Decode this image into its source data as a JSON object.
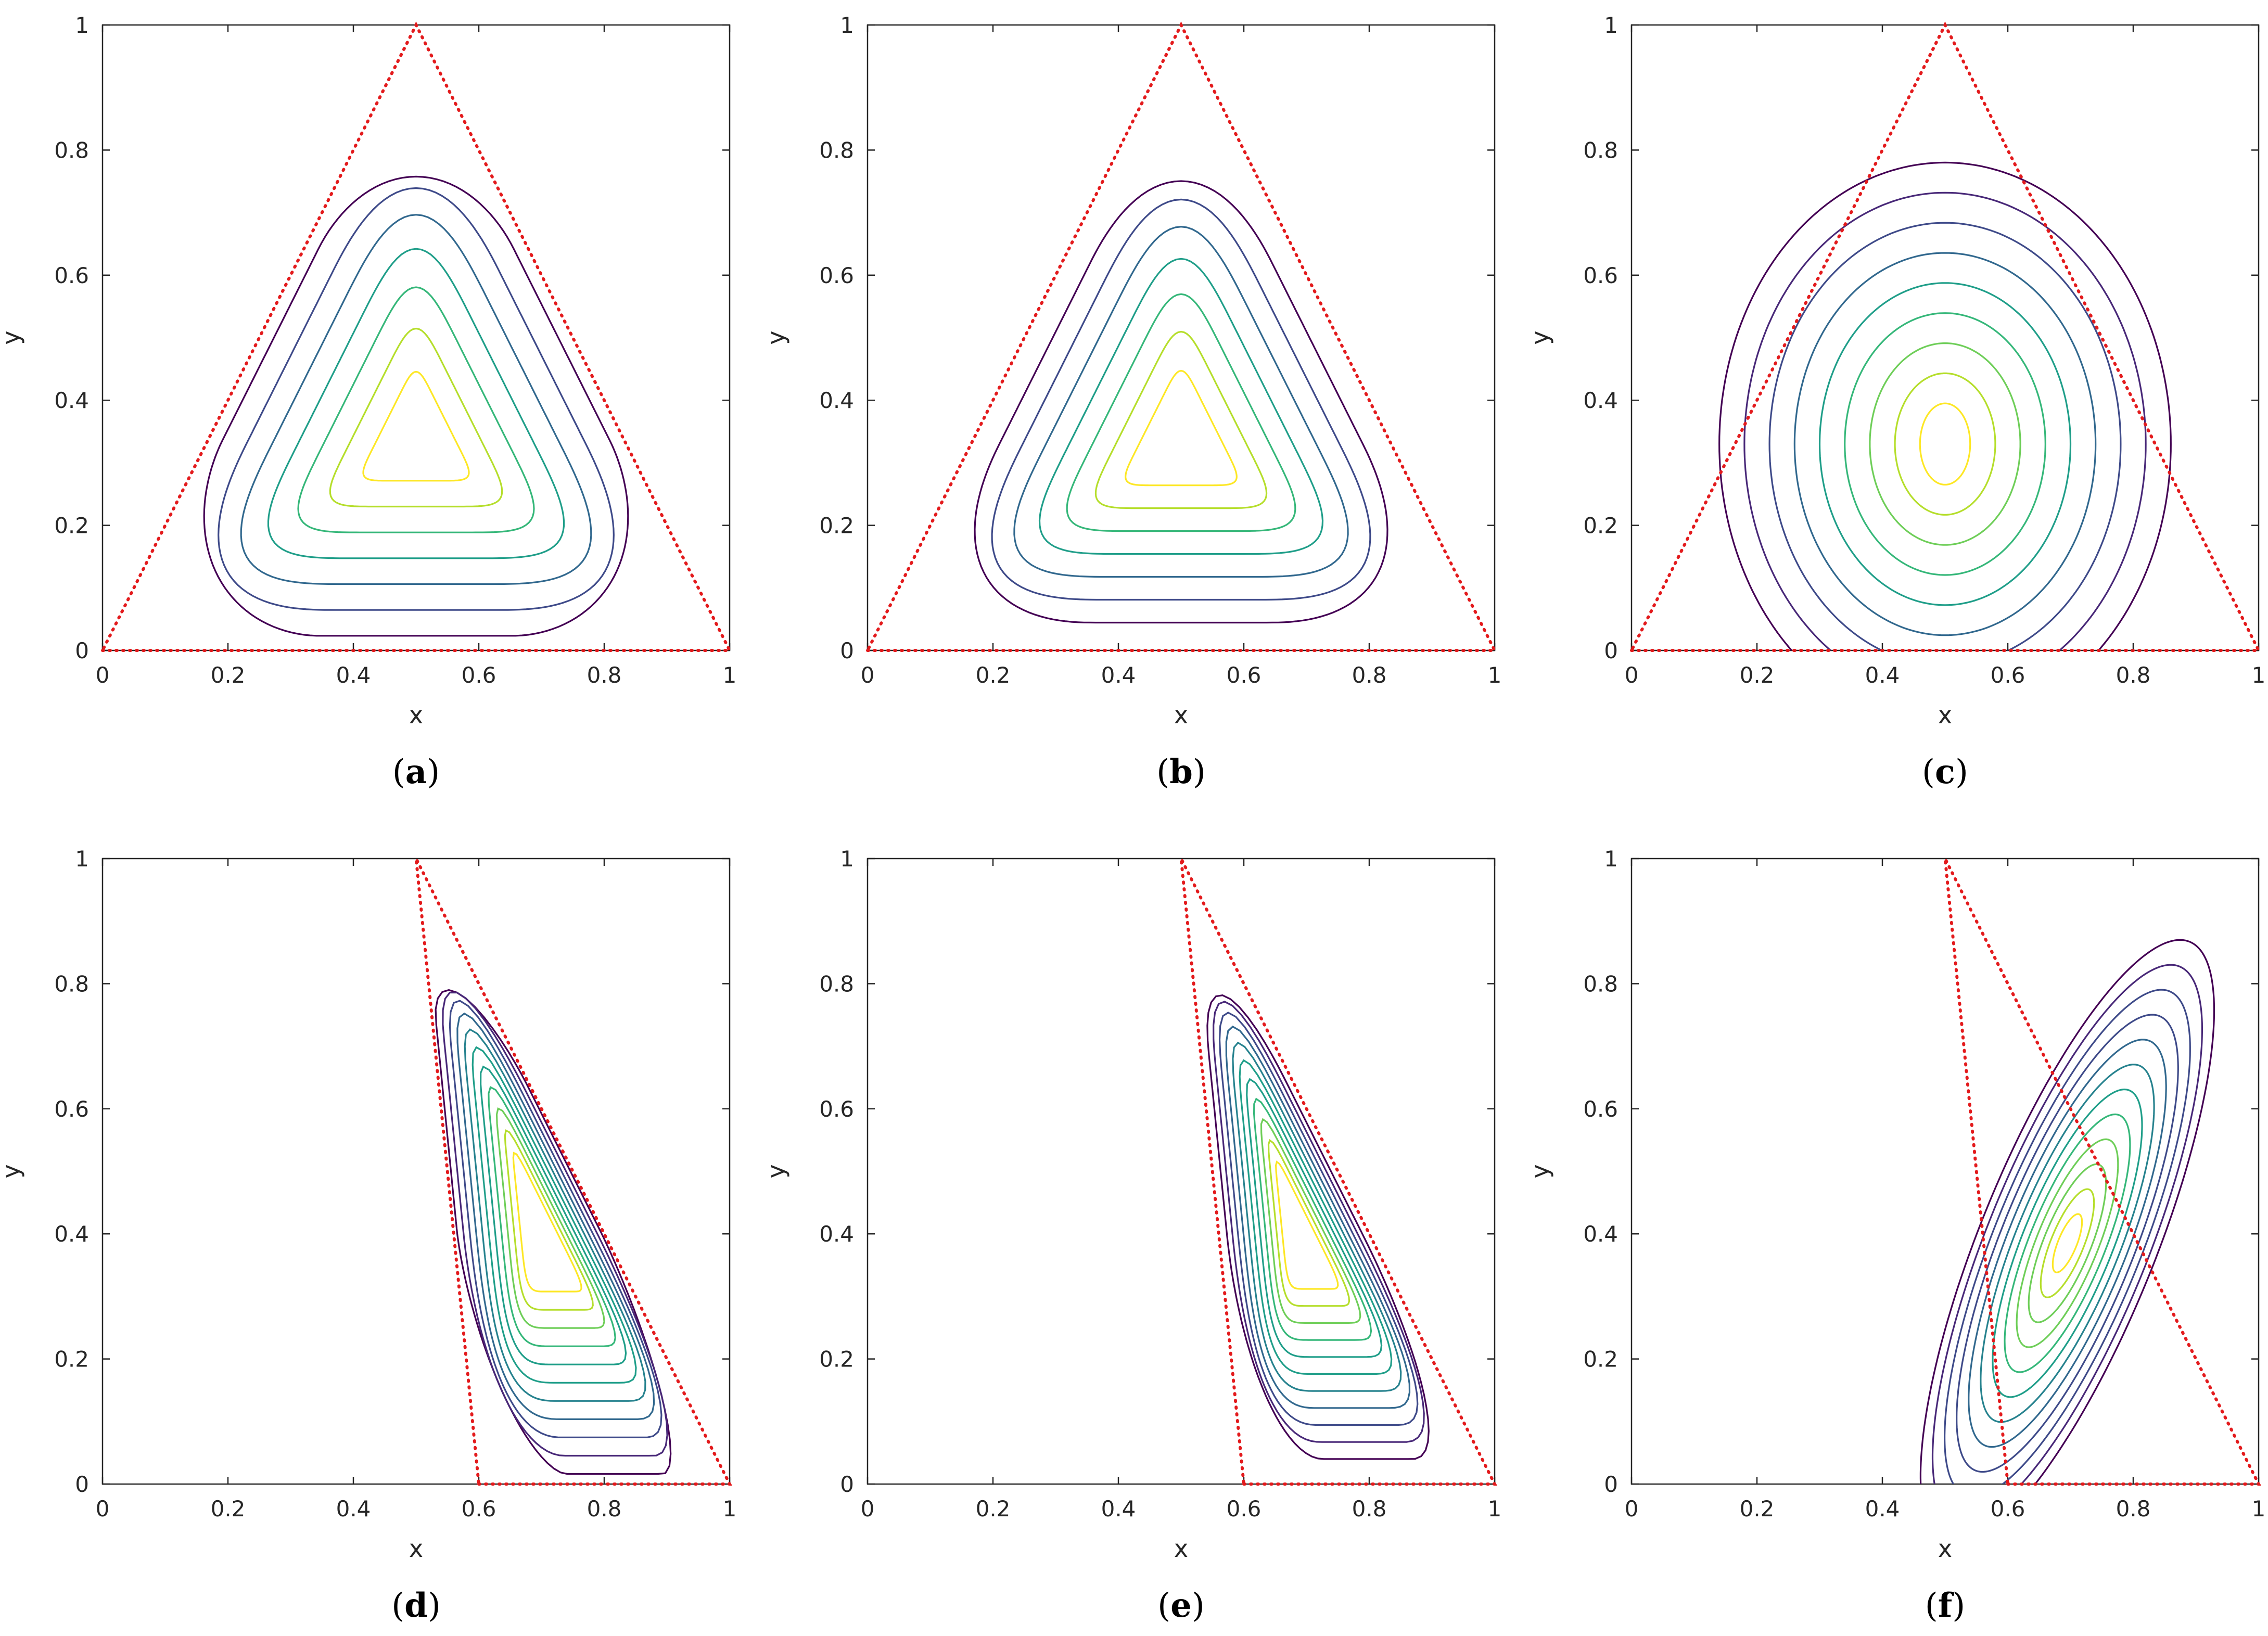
{
  "colors": {
    "boundary": "#e31a1c",
    "axis": "#262626",
    "viridis": [
      "#440154",
      "#482878",
      "#3e4a89",
      "#31688e",
      "#26828e",
      "#1f9e89",
      "#35b779",
      "#6ece58",
      "#b5de2b",
      "#fde725"
    ]
  },
  "chart_data": [
    {
      "panel": "a",
      "caption_letter": "a",
      "type": "contour",
      "xlabel": "x",
      "ylabel": "y",
      "xlim": [
        0,
        1
      ],
      "ylim": [
        0,
        1
      ],
      "xticks": [
        "0",
        "0.2",
        "0.4",
        "0.6",
        "0.8",
        "1"
      ],
      "yticks": [
        "0",
        "0.2",
        "0.4",
        "0.6",
        "0.8",
        "1"
      ],
      "boundary": {
        "style": "dotted",
        "vertices": [
          [
            0,
            0
          ],
          [
            1,
            0
          ],
          [
            0.5,
            1
          ]
        ]
      },
      "contours": {
        "family": "smooth-triangle",
        "center": [
          0.5,
          0.335
        ],
        "fraction_max": 0.93,
        "fraction_min": 0.19,
        "levels": 7
      }
    },
    {
      "panel": "b",
      "caption_letter": "b",
      "type": "contour",
      "xlabel": "x",
      "ylabel": "y",
      "xlim": [
        0,
        1
      ],
      "ylim": [
        0,
        1
      ],
      "xticks": [
        "0",
        "0.2",
        "0.4",
        "0.6",
        "0.8",
        "1"
      ],
      "yticks": [
        "0",
        "0.2",
        "0.4",
        "0.6",
        "0.8",
        "1"
      ],
      "boundary": {
        "style": "dotted",
        "vertices": [
          [
            0,
            0
          ],
          [
            1,
            0
          ],
          [
            0.5,
            1
          ]
        ]
      },
      "contours": {
        "family": "smooth-triangle",
        "center": [
          0.5,
          0.33
        ],
        "fraction_max": 0.865,
        "fraction_min": 0.2,
        "levels": 7
      }
    },
    {
      "panel": "c",
      "caption_letter": "c",
      "type": "contour",
      "xlabel": "x",
      "ylabel": "y",
      "xlim": [
        0,
        1
      ],
      "ylim": [
        0,
        1
      ],
      "xticks": [
        "0",
        "0.2",
        "0.4",
        "0.6",
        "0.8",
        "1"
      ],
      "yticks": [
        "0",
        "0.2",
        "0.4",
        "0.6",
        "0.8",
        "1"
      ],
      "boundary": {
        "style": "dotted",
        "vertices": [
          [
            0,
            0
          ],
          [
            1,
            0
          ],
          [
            0.5,
            1
          ]
        ]
      },
      "contours": {
        "family": "ellipse",
        "center": [
          0.5,
          0.33
        ],
        "semi_axes_max": [
          0.36,
          0.45
        ],
        "semi_axes_min": [
          0.04,
          0.065
        ],
        "levels": 9
      }
    },
    {
      "panel": "d",
      "caption_letter": "d",
      "type": "contour",
      "xlabel": "x",
      "ylabel": "y",
      "xlim": [
        0,
        1
      ],
      "ylim": [
        0,
        1
      ],
      "xticks": [
        "0",
        "0.2",
        "0.4",
        "0.6",
        "0.8",
        "1"
      ],
      "yticks": [
        "0",
        "0.2",
        "0.4",
        "0.6",
        "0.8",
        "1"
      ],
      "boundary": {
        "style": "dotted",
        "vertices": [
          [
            0.6,
            0
          ],
          [
            1,
            0
          ],
          [
            0.5,
            1
          ]
        ]
      },
      "contours": {
        "family": "smooth-triangle",
        "center": [
          0.7,
          0.405
        ],
        "fraction_max": 0.96,
        "fraction_min": 0.24,
        "levels": 11
      }
    },
    {
      "panel": "e",
      "caption_letter": "e",
      "type": "contour",
      "xlabel": "x",
      "ylabel": "y",
      "xlim": [
        0,
        1
      ],
      "ylim": [
        0,
        1
      ],
      "xticks": [
        "0",
        "0.2",
        "0.4",
        "0.6",
        "0.8",
        "1"
      ],
      "yticks": [
        "0",
        "0.2",
        "0.4",
        "0.6",
        "0.8",
        "1"
      ],
      "boundary": {
        "style": "dotted",
        "vertices": [
          [
            0.6,
            0
          ],
          [
            1,
            0
          ],
          [
            0.5,
            1
          ]
        ]
      },
      "contours": {
        "family": "smooth-triangle",
        "center": [
          0.69,
          0.4
        ],
        "fraction_max": 0.9,
        "fraction_min": 0.22,
        "levels": 11
      }
    },
    {
      "panel": "f",
      "caption_letter": "f",
      "type": "contour",
      "xlabel": "x",
      "ylabel": "y",
      "xlim": [
        0,
        1
      ],
      "ylim": [
        0,
        1
      ],
      "xticks": [
        "0",
        "0.2",
        "0.4",
        "0.6",
        "0.8",
        "1"
      ],
      "yticks": [
        "0",
        "0.2",
        "0.4",
        "0.6",
        "0.8",
        "1"
      ],
      "boundary": {
        "style": "dotted",
        "vertices": [
          [
            0.6,
            0
          ],
          [
            1,
            0
          ],
          [
            0.5,
            1
          ]
        ]
      },
      "contours": {
        "family": "rotated-ellipse",
        "center": [
          0.695,
          0.385
        ],
        "semi_axes_max": [
          0.14,
          0.52
        ],
        "semi_axes_min": [
          0.015,
          0.05
        ],
        "tilt_deg": 22,
        "levels": 12
      }
    }
  ]
}
